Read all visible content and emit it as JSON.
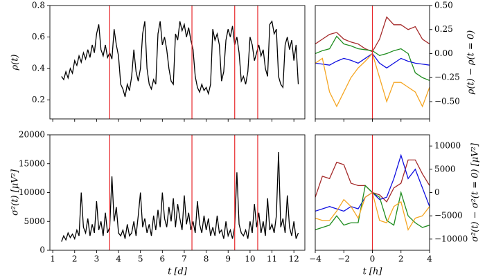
{
  "chart_data": [
    {
      "type": "line",
      "ylabel": "ρ(t)",
      "xtick_labels": false,
      "x": [
        1.4,
        1.5,
        1.6,
        1.7,
        1.8,
        1.9,
        2.0,
        2.1,
        2.2,
        2.3,
        2.4,
        2.5,
        2.6,
        2.7,
        2.8,
        2.9,
        3.0,
        3.1,
        3.2,
        3.3,
        3.4,
        3.5,
        3.6,
        3.7,
        3.8,
        3.9,
        4.0,
        4.1,
        4.2,
        4.3,
        4.4,
        4.5,
        4.6,
        4.7,
        4.8,
        4.9,
        5.0,
        5.1,
        5.2,
        5.3,
        5.4,
        5.5,
        5.6,
        5.7,
        5.8,
        5.9,
        6.0,
        6.1,
        6.2,
        6.3,
        6.4,
        6.5,
        6.6,
        6.7,
        6.8,
        6.9,
        7.0,
        7.1,
        7.2,
        7.3,
        7.4,
        7.5,
        7.6,
        7.7,
        7.8,
        7.9,
        8.0,
        8.1,
        8.2,
        8.3,
        8.4,
        8.5,
        8.6,
        8.7,
        8.8,
        8.9,
        9.0,
        9.1,
        9.2,
        9.3,
        9.4,
        9.5,
        9.6,
        9.7,
        9.8,
        9.9,
        10.0,
        10.1,
        10.2,
        10.3,
        10.4,
        10.5,
        10.6,
        10.7,
        10.8,
        10.9,
        11.0,
        11.1,
        11.2,
        11.3,
        11.4,
        11.5,
        11.6,
        11.7,
        11.8,
        11.9,
        12.0,
        12.1,
        12.2
      ],
      "series": [
        {
          "color": "#000000",
          "values": [
            0.35,
            0.33,
            0.38,
            0.34,
            0.4,
            0.37,
            0.45,
            0.42,
            0.48,
            0.44,
            0.5,
            0.46,
            0.52,
            0.47,
            0.55,
            0.5,
            0.62,
            0.68,
            0.52,
            0.48,
            0.55,
            0.47,
            0.5,
            0.46,
            0.65,
            0.55,
            0.48,
            0.3,
            0.27,
            0.22,
            0.3,
            0.26,
            0.35,
            0.52,
            0.38,
            0.32,
            0.4,
            0.62,
            0.7,
            0.4,
            0.3,
            0.27,
            0.33,
            0.3,
            0.62,
            0.7,
            0.55,
            0.6,
            0.52,
            0.4,
            0.32,
            0.3,
            0.62,
            0.58,
            0.7,
            0.64,
            0.68,
            0.6,
            0.66,
            0.58,
            0.52,
            0.35,
            0.28,
            0.25,
            0.3,
            0.26,
            0.28,
            0.24,
            0.3,
            0.65,
            0.58,
            0.62,
            0.55,
            0.32,
            0.38,
            0.58,
            0.65,
            0.6,
            0.67,
            0.55,
            0.6,
            0.5,
            0.32,
            0.35,
            0.3,
            0.38,
            0.6,
            0.55,
            0.45,
            0.5,
            0.55,
            0.48,
            0.52,
            0.4,
            0.35,
            0.68,
            0.7,
            0.62,
            0.65,
            0.35,
            0.3,
            0.28,
            0.55,
            0.6,
            0.52,
            0.58,
            0.45,
            0.55,
            0.3
          ]
        }
      ],
      "xlim": [
        0.87,
        12.5
      ],
      "xticks": [
        1,
        2,
        3,
        4,
        5,
        6,
        7,
        8,
        9,
        10,
        11,
        12
      ],
      "ylim": [
        0.08,
        0.8
      ],
      "yticks": [
        0.2,
        0.4,
        0.6,
        0.8
      ],
      "vlines": [
        3.6,
        7.35,
        9.3,
        10.35
      ],
      "vline_color": "#e8262a"
    },
    {
      "type": "line",
      "ylabel": "ρ(t) − ρ(t = 0)",
      "yaxis_side": "right",
      "xtick_labels": false,
      "x": [
        -4,
        -3.5,
        -3,
        -2.5,
        -2,
        -1.5,
        -1,
        -0.5,
        0,
        0.5,
        1,
        1.5,
        2,
        2.5,
        3,
        3.5,
        4
      ],
      "series": [
        {
          "color": "#a52a2a",
          "values": [
            0.1,
            0.15,
            0.2,
            0.22,
            0.15,
            0.12,
            0.1,
            0.05,
            0.02,
            0.15,
            0.38,
            0.3,
            0.3,
            0.25,
            0.28,
            0.15,
            0.1
          ]
        },
        {
          "color": "#1e8c1e",
          "values": [
            0.0,
            0.03,
            0.05,
            0.18,
            0.1,
            0.08,
            0.05,
            0.04,
            0.03,
            -0.02,
            0.0,
            0.03,
            0.05,
            0.0,
            -0.2,
            -0.25,
            -0.28
          ]
        },
        {
          "color": "#1010e0",
          "values": [
            -0.1,
            -0.11,
            -0.12,
            -0.08,
            -0.05,
            -0.07,
            -0.1,
            -0.05,
            0.0,
            -0.1,
            -0.15,
            -0.1,
            -0.05,
            -0.08,
            -0.1,
            -0.11,
            -0.12
          ]
        },
        {
          "color": "#f5a623",
          "values": [
            -0.1,
            -0.05,
            -0.4,
            -0.55,
            -0.4,
            -0.25,
            -0.15,
            -0.08,
            0.0,
            -0.25,
            -0.5,
            -0.3,
            -0.3,
            -0.35,
            -0.4,
            -0.55,
            -0.35
          ]
        }
      ],
      "xlim": [
        -4,
        4
      ],
      "xticks": [
        -4,
        -2,
        0,
        2,
        4
      ],
      "ylim": [
        -0.68,
        0.5
      ],
      "yticks": [
        {
          "value": -0.5,
          "label": "−0.50"
        },
        {
          "value": -0.25,
          "label": "−0.25"
        },
        {
          "value": 0,
          "label": "0.00"
        },
        0.25,
        {
          "value": 0.5,
          "label": "0.50"
        }
      ],
      "vlines": [
        0
      ],
      "vline_color": "#e8262a"
    },
    {
      "type": "line",
      "ylabel": "σ²(t) [μV²]",
      "xlabel": "t [d]",
      "x": [
        1.4,
        1.5,
        1.6,
        1.7,
        1.8,
        1.9,
        2.0,
        2.1,
        2.2,
        2.3,
        2.4,
        2.5,
        2.6,
        2.7,
        2.8,
        2.9,
        3.0,
        3.1,
        3.2,
        3.3,
        3.4,
        3.5,
        3.6,
        3.7,
        3.8,
        3.9,
        4.0,
        4.1,
        4.2,
        4.3,
        4.4,
        4.5,
        4.6,
        4.7,
        4.8,
        4.9,
        5.0,
        5.1,
        5.2,
        5.3,
        5.4,
        5.5,
        5.6,
        5.7,
        5.8,
        5.9,
        6.0,
        6.1,
        6.2,
        6.3,
        6.4,
        6.5,
        6.6,
        6.7,
        6.8,
        6.9,
        7.0,
        7.1,
        7.2,
        7.3,
        7.4,
        7.5,
        7.6,
        7.7,
        7.8,
        7.9,
        8.0,
        8.1,
        8.2,
        8.3,
        8.4,
        8.5,
        8.6,
        8.7,
        8.8,
        8.9,
        9.0,
        9.1,
        9.2,
        9.3,
        9.4,
        9.5,
        9.6,
        9.7,
        9.8,
        9.9,
        10.0,
        10.1,
        10.2,
        10.3,
        10.4,
        10.5,
        10.6,
        10.7,
        10.8,
        10.9,
        11.0,
        11.1,
        11.2,
        11.3,
        11.4,
        11.5,
        11.6,
        11.7,
        11.8,
        11.9,
        12.0,
        12.1,
        12.2
      ],
      "series": [
        {
          "color": "#000000",
          "values": [
            1500,
            2500,
            1800,
            3000,
            2200,
            2800,
            2000,
            3500,
            2500,
            10000,
            4000,
            3000,
            5500,
            2500,
            4500,
            3000,
            8500,
            3500,
            5000,
            2500,
            6500,
            3000,
            4000,
            12800,
            5000,
            7500,
            3000,
            2500,
            3500,
            2000,
            4500,
            2500,
            3000,
            5000,
            2500,
            6000,
            10000,
            4000,
            5500,
            3000,
            4500,
            2500,
            6000,
            3500,
            7000,
            4000,
            10000,
            5500,
            4000,
            7500,
            5000,
            9000,
            4000,
            8000,
            5500,
            3500,
            9500,
            4500,
            6500,
            3500,
            5000,
            3000,
            8500,
            4500,
            3000,
            6000,
            3500,
            5500,
            2500,
            4000,
            2500,
            6000,
            3000,
            3500,
            2000,
            5000,
            2500,
            3500,
            2000,
            4000,
            13500,
            4500,
            3000,
            2500,
            3500,
            2000,
            5000,
            3000,
            8000,
            4000,
            6500,
            3000,
            5000,
            2500,
            9000,
            3500,
            4500,
            3000,
            6000,
            17000,
            4000,
            5500,
            3000,
            9500,
            4000,
            2500,
            5000,
            2000,
            3000
          ]
        }
      ],
      "xlim": [
        0.87,
        12.5
      ],
      "xticks": [
        1,
        2,
        3,
        4,
        5,
        6,
        7,
        8,
        9,
        10,
        11,
        12
      ],
      "ylim": [
        0,
        20000
      ],
      "yticks": [
        0,
        5000,
        10000,
        15000,
        20000
      ],
      "vlines": [
        3.6,
        7.35,
        9.3,
        10.35
      ],
      "vline_color": "#e8262a"
    },
    {
      "type": "line",
      "ylabel": "σ²(t) − σ²(t = 0) [μV²]",
      "xlabel": "t [h]",
      "yaxis_side": "right",
      "x": [
        -4,
        -3.5,
        -3,
        -2.5,
        -2,
        -1.5,
        -1,
        -0.5,
        0,
        0.5,
        1,
        1.5,
        2,
        2.5,
        3,
        3.5,
        4
      ],
      "series": [
        {
          "color": "#a52a2a",
          "values": [
            -1000,
            3500,
            3000,
            6500,
            6000,
            2000,
            1500,
            1500,
            0,
            -500,
            -2000,
            1000,
            2000,
            7000,
            7000,
            4000,
            1500
          ]
        },
        {
          "color": "#1010e0",
          "values": [
            -4000,
            -3500,
            -3000,
            -3500,
            -4000,
            -3000,
            -3500,
            -1000,
            0,
            -1500,
            -1000,
            3000,
            8000,
            3000,
            5000,
            1000,
            -3000
          ]
        },
        {
          "color": "#1e8c1e",
          "values": [
            -8000,
            -7500,
            -7000,
            -5000,
            -7000,
            -6500,
            -6500,
            1500,
            0,
            -1000,
            -6000,
            -7000,
            0,
            -5000,
            -6500,
            -7500,
            -7000
          ]
        },
        {
          "color": "#f5a623",
          "values": [
            -5500,
            -6000,
            -6000,
            -4000,
            -1500,
            -3000,
            -5500,
            -1000,
            0,
            -6000,
            -6500,
            -3000,
            -2000,
            -8000,
            -5500,
            -5000,
            -3000
          ]
        }
      ],
      "xlim": [
        -4,
        4
      ],
      "xticks": [
        {
          "value": -4,
          "label": "−4"
        },
        {
          "value": -2,
          "label": "−2"
        },
        0,
        2,
        4
      ],
      "ylim": [
        -12400,
        12400
      ],
      "yticks": [
        {
          "value": -10000,
          "label": "−10000"
        },
        {
          "value": -5000,
          "label": "−5000"
        },
        0,
        5000,
        10000
      ],
      "vlines": [
        0
      ],
      "vline_color": "#e8262a"
    }
  ]
}
